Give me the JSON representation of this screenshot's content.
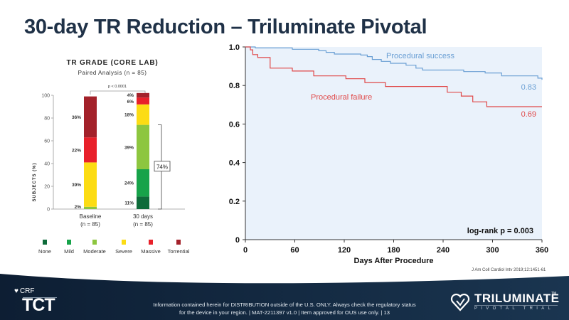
{
  "slide": {
    "title": "30-day TR Reduction – Triluminate Pivotal",
    "citation": "J Am Coll Cardiol Intv 2019;12:1451-61",
    "footer": {
      "disclaimer_line1": "Information contained herein for DISTRIBUTION outside of the U.S. ONLY. Always check the regulatory status",
      "disclaimer_line2": "for the device in your region. | MAT-2211397 v1.0 | Item approved for OUS use only. | 13",
      "crf_label": "CRF",
      "tct_label": "TCT",
      "brand_name": "TRILUMINATE",
      "brand_tm": "TM",
      "brand_sub": "PIVOTAL TRIAL"
    }
  },
  "chart_data": [
    {
      "type": "bar",
      "stacked": true,
      "title": "TR GRADE (CORE LAB)",
      "subtitle": "Paired Analysis (n = 85)",
      "ylabel": "SUBJECTS (%)",
      "ylim": [
        0,
        100
      ],
      "yticks": [
        0,
        20,
        40,
        60,
        80,
        100
      ],
      "categories": [
        "Baseline",
        "30 days"
      ],
      "category_sublabels": [
        "(n = 85)",
        "(n = 85)"
      ],
      "series": [
        {
          "name": "None",
          "color": "#0e6b3a",
          "values": [
            0,
            11
          ]
        },
        {
          "name": "Mild",
          "color": "#17a34a",
          "values": [
            0,
            24
          ]
        },
        {
          "name": "Moderate",
          "color": "#8dc63f",
          "values": [
            2,
            39
          ]
        },
        {
          "name": "Severe",
          "color": "#fcdc14",
          "values": [
            39,
            18
          ]
        },
        {
          "name": "Massive",
          "color": "#e8202a",
          "values": [
            22,
            6
          ]
        },
        {
          "name": "Torrential",
          "color": "#a3212a",
          "values": [
            36,
            4
          ]
        }
      ],
      "annotations": {
        "p_value": "p < 0.0001",
        "bracket_label": "74%"
      },
      "legend_position": "bottom"
    },
    {
      "type": "line",
      "subtype": "kaplan-meier",
      "xlabel": "Days After Procedure",
      "ylabel": "",
      "xlim": [
        0,
        360
      ],
      "ylim": [
        0,
        1.0
      ],
      "xticks": [
        0,
        60,
        120,
        180,
        240,
        300,
        360
      ],
      "yticks": [
        0,
        0.2,
        0.4,
        0.6,
        0.8,
        1.0
      ],
      "ytick_labels": [
        "0",
        "0.2",
        "0.4",
        "0.6",
        "0.8",
        "1.0"
      ],
      "series": [
        {
          "name": "Procedural success",
          "color": "#6a9fd4",
          "end_label": "0.83",
          "points": [
            [
              0,
              1.0
            ],
            [
              12,
              1.0
            ],
            [
              12,
              0.995
            ],
            [
              57,
              0.995
            ],
            [
              57,
              0.988
            ],
            [
              89,
              0.988
            ],
            [
              89,
              0.98
            ],
            [
              98,
              0.98
            ],
            [
              98,
              0.972
            ],
            [
              108,
              0.972
            ],
            [
              108,
              0.963
            ],
            [
              140,
              0.963
            ],
            [
              140,
              0.958
            ],
            [
              148,
              0.958
            ],
            [
              148,
              0.95
            ],
            [
              154,
              0.95
            ],
            [
              154,
              0.935
            ],
            [
              165,
              0.935
            ],
            [
              165,
              0.925
            ],
            [
              176,
              0.925
            ],
            [
              176,
              0.915
            ],
            [
              195,
              0.915
            ],
            [
              195,
              0.905
            ],
            [
              207,
              0.905
            ],
            [
              207,
              0.89
            ],
            [
              215,
              0.89
            ],
            [
              215,
              0.88
            ],
            [
              265,
              0.88
            ],
            [
              265,
              0.872
            ],
            [
              291,
              0.872
            ],
            [
              291,
              0.865
            ],
            [
              311,
              0.865
            ],
            [
              311,
              0.85
            ],
            [
              355,
              0.85
            ],
            [
              355,
              0.838
            ],
            [
              378,
              0.838
            ],
            [
              378,
              0.83
            ],
            [
              405,
              0.83
            ]
          ]
        },
        {
          "name": "Procedural failure",
          "color": "#e04848",
          "end_label": "0.69",
          "points": [
            [
              0,
              1.0
            ],
            [
              6,
              1.0
            ],
            [
              6,
              0.985
            ],
            [
              9,
              0.985
            ],
            [
              9,
              0.96
            ],
            [
              15,
              0.96
            ],
            [
              15,
              0.945
            ],
            [
              30,
              0.945
            ],
            [
              30,
              0.89
            ],
            [
              57,
              0.89
            ],
            [
              57,
              0.875
            ],
            [
              83,
              0.875
            ],
            [
              83,
              0.85
            ],
            [
              122,
              0.85
            ],
            [
              122,
              0.835
            ],
            [
              145,
              0.835
            ],
            [
              145,
              0.815
            ],
            [
              170,
              0.815
            ],
            [
              170,
              0.795
            ],
            [
              245,
              0.795
            ],
            [
              245,
              0.765
            ],
            [
              262,
              0.765
            ],
            [
              262,
              0.745
            ],
            [
              276,
              0.745
            ],
            [
              276,
              0.715
            ],
            [
              293,
              0.715
            ],
            [
              293,
              0.69
            ],
            [
              405,
              0.69
            ]
          ]
        }
      ],
      "annotations": {
        "log_rank": "log-rank p = 0.003"
      },
      "plot_background": "#eaf2fb",
      "grid": false
    }
  ]
}
